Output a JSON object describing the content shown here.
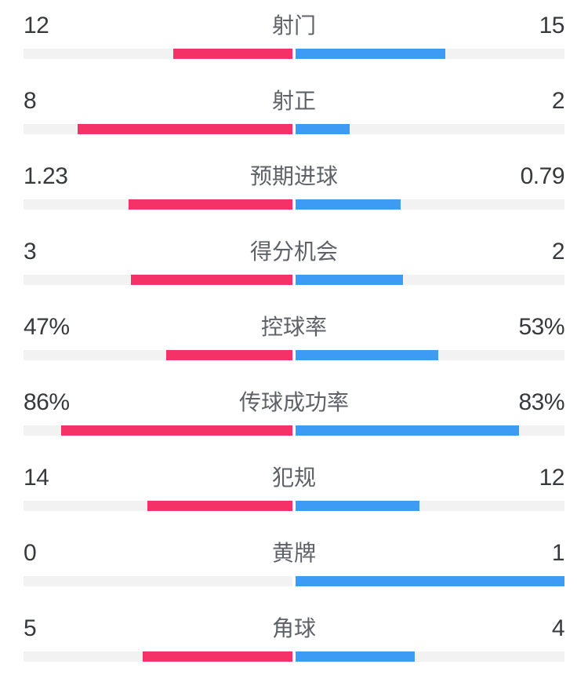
{
  "panel": {
    "background_color": "#ffffff",
    "track_color": "#f2f2f2",
    "value_text_color": "#36393e",
    "label_text_color": "#5d6268"
  },
  "chart_data": {
    "type": "bar",
    "subtype": "opposed-horizontal-comparison",
    "title": "",
    "description": "Football match statistics comparison; each row has a center label, left (pink) team value and right (blue) team value; bar lengths grow outward from center. Counts are scaled by value/(left+right); percentage rows are scaled by the raw percent.",
    "legend_position": "none",
    "grid": false,
    "categories": [
      "射门",
      "射正",
      "预期进球",
      "得分机会",
      "控球率",
      "传球成功率",
      "犯规",
      "黄牌",
      "角球"
    ],
    "series": [
      {
        "name": "home",
        "side": "left",
        "color": "#f43267",
        "values": [
          "12",
          "8",
          "1.23",
          "3",
          "47%",
          "86%",
          "14",
          "0",
          "5"
        ]
      },
      {
        "name": "away",
        "side": "right",
        "color": "#3d9bf3",
        "values": [
          "15",
          "2",
          "0.79",
          "2",
          "53%",
          "83%",
          "12",
          "1",
          "4"
        ]
      }
    ]
  }
}
